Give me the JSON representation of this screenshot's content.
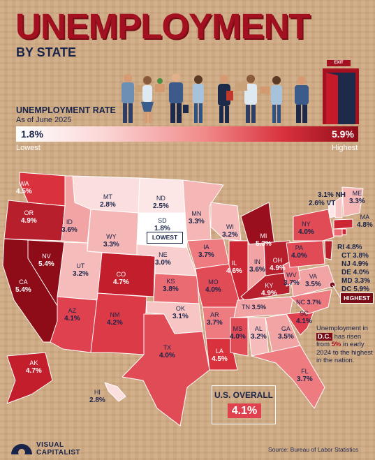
{
  "title": "UNEMPLOYMENT",
  "subtitle": "BY STATE",
  "legend": {
    "label": "UNEMPLOYMENT RATE",
    "date": "As of June 2025",
    "min": "1.8%",
    "max": "5.9%",
    "low_text": "Lowest",
    "high_text": "Highest",
    "exit_sign": "EXIT"
  },
  "states": {
    "WA": {
      "abbr": "WA",
      "value": "4.5%"
    },
    "OR": {
      "abbr": "OR",
      "value": "4.9%"
    },
    "CA": {
      "abbr": "CA",
      "value": "5.4%"
    },
    "NV": {
      "abbr": "NV",
      "value": "5.4%"
    },
    "ID": {
      "abbr": "ID",
      "value": "3.6%"
    },
    "MT": {
      "abbr": "MT",
      "value": "2.8%"
    },
    "WY": {
      "abbr": "WY",
      "value": "3.3%"
    },
    "UT": {
      "abbr": "UT",
      "value": "3.2%"
    },
    "AZ": {
      "abbr": "AZ",
      "value": "4.1%"
    },
    "CO": {
      "abbr": "CO",
      "value": "4.7%"
    },
    "NM": {
      "abbr": "NM",
      "value": "4.2%"
    },
    "ND": {
      "abbr": "ND",
      "value": "2.5%"
    },
    "SD": {
      "abbr": "SD",
      "value": "1.8%"
    },
    "NE": {
      "abbr": "NE",
      "value": "3.0%"
    },
    "KS": {
      "abbr": "KS",
      "value": "3.8%"
    },
    "OK": {
      "abbr": "OK",
      "value": "3.1%"
    },
    "TX": {
      "abbr": "TX",
      "value": "4.0%"
    },
    "MN": {
      "abbr": "MN",
      "value": "3.3%"
    },
    "IA": {
      "abbr": "IA",
      "value": "3.7%"
    },
    "MO": {
      "abbr": "MO",
      "value": "4.0%"
    },
    "AR": {
      "abbr": "AR",
      "value": "3.7%"
    },
    "LA": {
      "abbr": "LA",
      "value": "4.5%"
    },
    "WI": {
      "abbr": "WI",
      "value": "3.2%"
    },
    "IL": {
      "abbr": "IL",
      "value": "4.6%"
    },
    "MI": {
      "abbr": "MI",
      "value": "5.3%"
    },
    "IN": {
      "abbr": "IN",
      "value": "3.6%"
    },
    "OH": {
      "abbr": "OH",
      "value": "4.9%"
    },
    "KY": {
      "abbr": "KY",
      "value": "4.9%"
    },
    "TN": {
      "abbr": "TN",
      "value": "3.5%"
    },
    "MS": {
      "abbr": "MS",
      "value": "4.0%"
    },
    "AL": {
      "abbr": "AL",
      "value": "3.2%"
    },
    "GA": {
      "abbr": "GA",
      "value": "3.5%"
    },
    "FL": {
      "abbr": "FL",
      "value": "3.7%"
    },
    "SC": {
      "abbr": "SC",
      "value": "4.1%"
    },
    "NC": {
      "abbr": "NC",
      "value": "3.7%"
    },
    "VA": {
      "abbr": "VA",
      "value": "3.5%"
    },
    "WV": {
      "abbr": "WV",
      "value": "3.7%"
    },
    "PA": {
      "abbr": "PA",
      "value": "4.0%"
    },
    "NY": {
      "abbr": "NY",
      "value": "4.0%"
    },
    "ME": {
      "abbr": "ME",
      "value": "3.3%"
    },
    "AK": {
      "abbr": "AK",
      "value": "4.7%"
    },
    "HI": {
      "abbr": "HI",
      "value": "2.8%"
    }
  },
  "northeast": {
    "NH": "3.1% NH",
    "VT": "2.6% VT",
    "MA": "MA",
    "MA_value": "4.8%",
    "RI": "RI 4.8%",
    "CT": "CT 3.8%",
    "NJ": "NJ 4.9%",
    "DE": "DE 4.0%",
    "MD": "MD 3.3%",
    "DC": "DC 5.9%"
  },
  "badges": {
    "lowest": "LOWEST",
    "highest": "HIGHEST"
  },
  "note": {
    "pre": "Unemployment in",
    "dc": "D.C.",
    "mid": "has risen from",
    "from": "5%",
    "post": "in early 2024 to the highest in the nation."
  },
  "overall": {
    "label": "U.S. OVERALL",
    "value": "4.1%"
  },
  "branding": {
    "line1": "VISUAL",
    "line2": "CAPITALIST"
  },
  "source": "Source: Bureau of Labor Statistics",
  "colors": {
    "dark_red": "#8e0b18",
    "red": "#d9323d",
    "navy": "#19244a",
    "lightest": "#fbe3e1"
  }
}
